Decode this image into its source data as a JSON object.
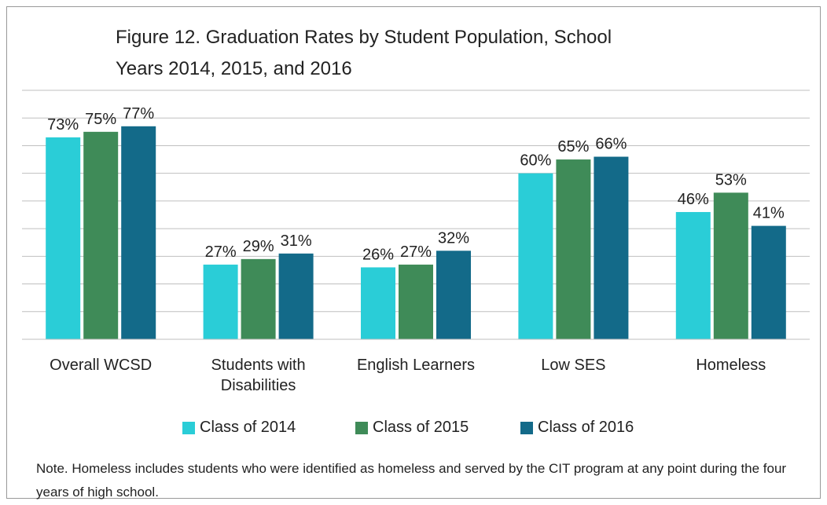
{
  "chart_data": {
    "type": "bar",
    "title": "Figure 12. Graduation Rates by Student Population, School Years 2014, 2015, and 2016",
    "categories": [
      "Overall WCSD",
      "Students with Disabilities",
      "English Learners",
      "Low SES",
      "Homeless"
    ],
    "series": [
      {
        "name": "Class of 2014",
        "color": "#2acdd7",
        "values": [
          73,
          27,
          26,
          60,
          46
        ],
        "value_labels": [
          "73%",
          "27%",
          "26%",
          "60%",
          "46%"
        ]
      },
      {
        "name": "Class of 2015",
        "color": "#3f8b58",
        "values": [
          75,
          29,
          27,
          65,
          53
        ],
        "value_labels": [
          "75%",
          "29%",
          "27%",
          "65%",
          "53%"
        ]
      },
      {
        "name": "Class of 2016",
        "color": "#136a89",
        "values": [
          77,
          31,
          32,
          66,
          41
        ],
        "value_labels": [
          "77%",
          "31%",
          "32%",
          "66%",
          "41%"
        ]
      }
    ],
    "ylim": [
      0,
      90
    ],
    "yticks": [
      0,
      10,
      20,
      30,
      40,
      50,
      60,
      70,
      80,
      90
    ],
    "grid": true,
    "note": "Note. Homeless includes students who were identified as homeless and served by the CIT program at any point during the four years of high school."
  }
}
